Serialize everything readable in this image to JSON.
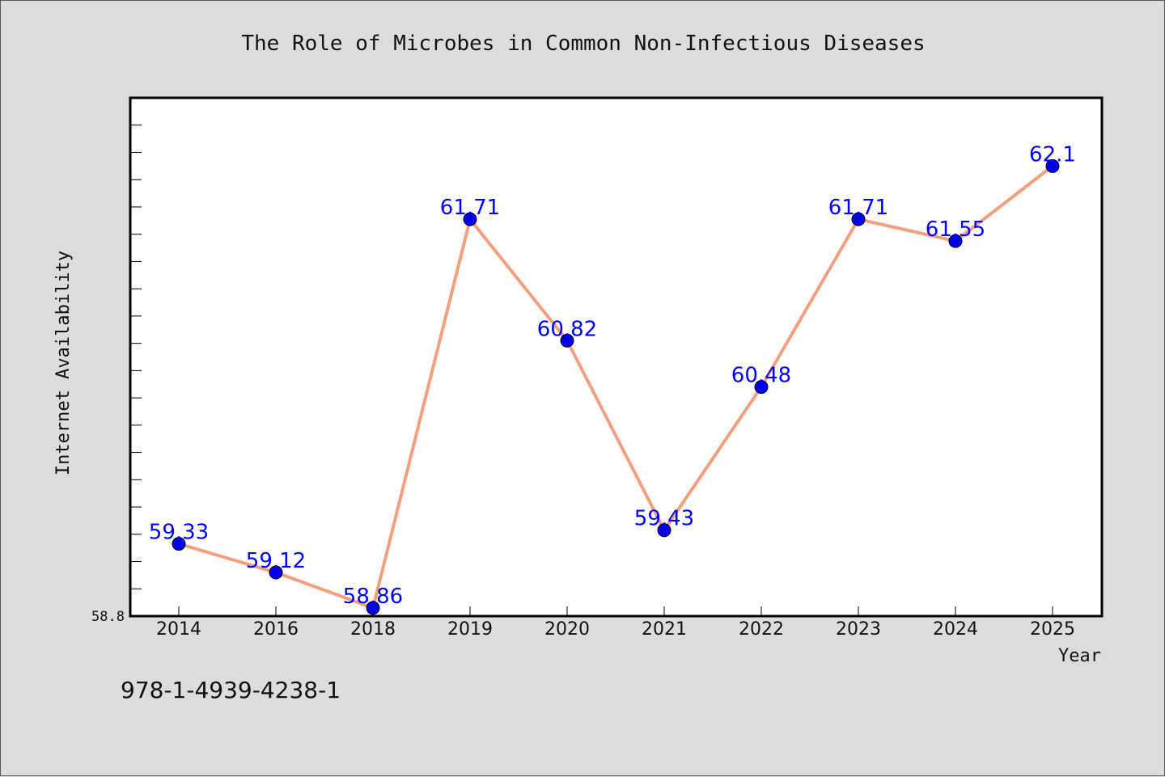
{
  "chart_data": {
    "type": "line",
    "title": "The Role of Microbes in Common Non-Infectious Diseases",
    "xlabel": "Year",
    "ylabel": "Internet Availability",
    "categories": [
      "2014",
      "2016",
      "2018",
      "2019",
      "2020",
      "2021",
      "2022",
      "2023",
      "2024",
      "2025"
    ],
    "series": [
      {
        "values": [
          59.33,
          59.12,
          58.86,
          61.71,
          60.82,
          59.43,
          60.48,
          61.71,
          61.55,
          62.1
        ],
        "data_labels": [
          "59.33",
          "59.12",
          "58.86",
          "61.71",
          "60.82",
          "59.43",
          "60.48",
          "61.71",
          "61.55",
          "62.1"
        ]
      }
    ],
    "ylim": [
      58.8,
      62.6
    ],
    "yticks_labeled": [
      "58.8"
    ],
    "y_minor_tick_step": 0.2,
    "line_color": "#f4a07f",
    "marker_color": "#0000ee",
    "label_color": "#0000ff",
    "grid": false,
    "legend": "none"
  },
  "footnote": "978-1-4939-4238-1"
}
